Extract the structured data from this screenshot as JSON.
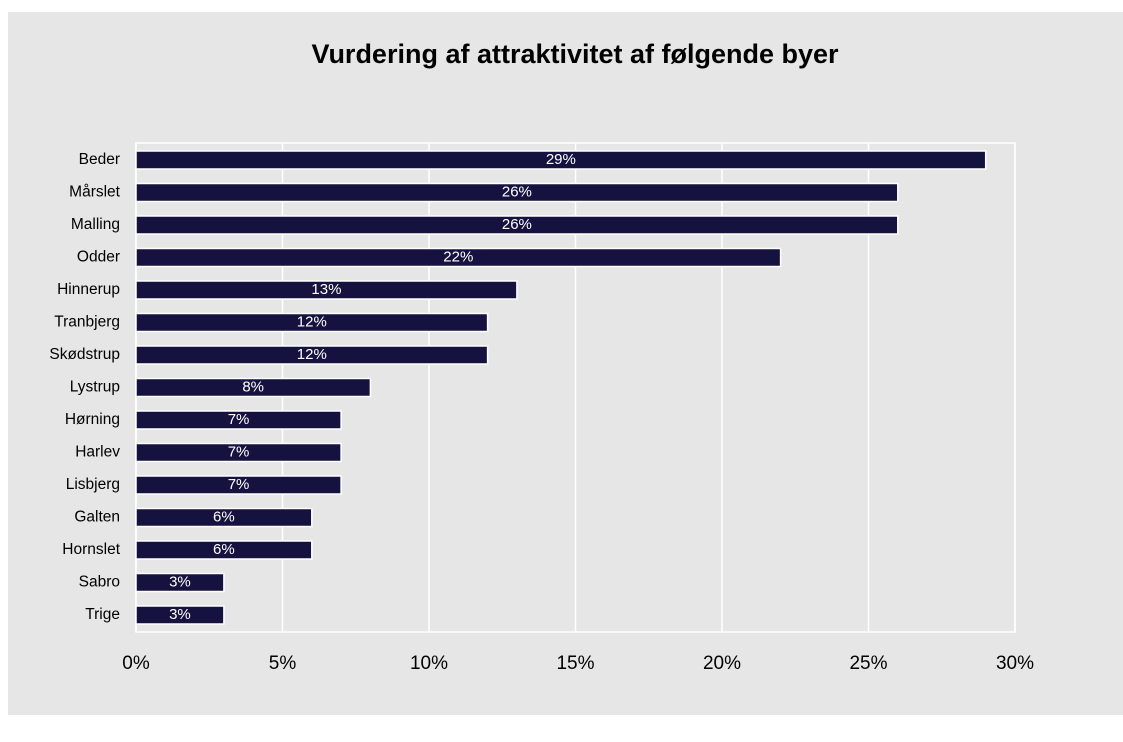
{
  "chart_data": {
    "type": "bar",
    "orientation": "horizontal",
    "title": "Vurdering af attraktivitet af følgende byer",
    "categories": [
      "Beder",
      "Mårslet",
      "Malling",
      "Odder",
      "Hinnerup",
      "Tranbjerg",
      "Skødstrup",
      "Lystrup",
      "Hørning",
      "Harlev",
      "Lisbjerg",
      "Galten",
      "Hornslet",
      "Sabro",
      "Trige"
    ],
    "values": [
      29,
      26,
      26,
      22,
      13,
      12,
      12,
      8,
      7,
      7,
      7,
      6,
      6,
      3,
      3
    ],
    "value_labels": [
      "29%",
      "26%",
      "26%",
      "22%",
      "13%",
      "12%",
      "12%",
      "8%",
      "7%",
      "7%",
      "7%",
      "6%",
      "6%",
      "3%",
      "3%"
    ],
    "color": "#15123f",
    "xlim": [
      0,
      30
    ],
    "xticks": [
      {
        "value": 0,
        "label": "0%"
      },
      {
        "value": 5,
        "label": "5%"
      },
      {
        "value": 10,
        "label": "10%"
      },
      {
        "value": 15,
        "label": "15%"
      },
      {
        "value": 20,
        "label": "20%"
      },
      {
        "value": 25,
        "label": "25%"
      },
      {
        "value": 30,
        "label": "30%"
      }
    ],
    "grid": true
  }
}
